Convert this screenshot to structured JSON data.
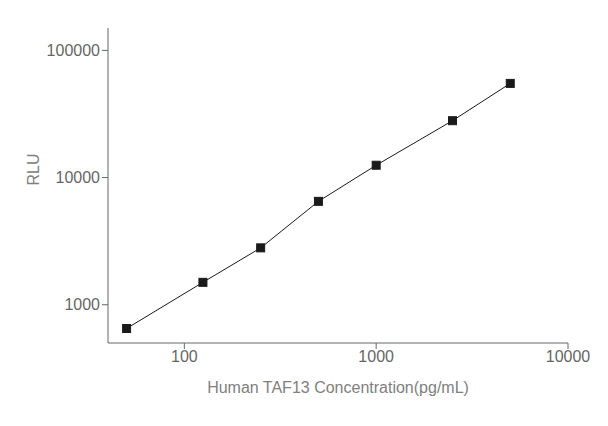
{
  "chart_data": {
    "type": "line",
    "x": [
      50,
      125,
      250,
      500,
      1000,
      2500,
      5000
    ],
    "series": [
      {
        "name": "RLU",
        "color": "#1a1a1a",
        "marker": "square",
        "values": [
          650,
          1500,
          2800,
          6500,
          12500,
          28000,
          55000
        ]
      }
    ],
    "xlabel": "Human TAF13 Concentration(pg/mL)",
    "ylabel": "RLU",
    "xlim": [
      40,
      10000
    ],
    "ylim": [
      500,
      150000
    ],
    "xticks": [
      100,
      1000,
      10000
    ],
    "yticks": [
      1000,
      10000,
      100000
    ],
    "log": true,
    "grid": false
  }
}
